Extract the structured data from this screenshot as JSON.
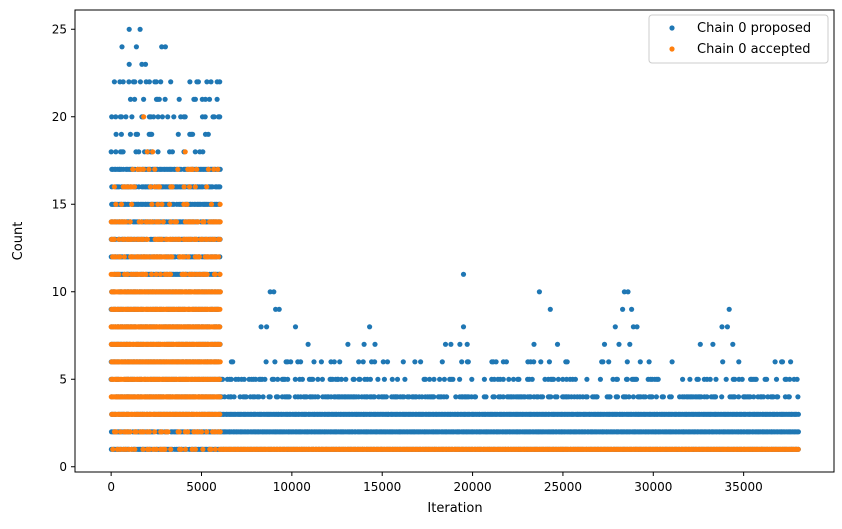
{
  "chart_data": {
    "type": "scatter",
    "title": "",
    "xlabel": "Iteration",
    "ylabel": "Count",
    "xlim": [
      -2000,
      40000
    ],
    "ylim": [
      -0.3,
      26.1
    ],
    "x_ticks": [
      0,
      5000,
      10000,
      15000,
      20000,
      25000,
      30000,
      35000
    ],
    "y_ticks": [
      0,
      5,
      10,
      15,
      20,
      25
    ],
    "grid": false,
    "legend_position": "top-right",
    "series": [
      {
        "name": "Chain 0 proposed",
        "color": "#1f77b4",
        "segments": [
          {
            "x_range": [
              0,
              6000
            ],
            "y_min": 1,
            "y_max": 17,
            "density": 0.9
          },
          {
            "x_range": [
              0,
              6000
            ],
            "y_min": 18,
            "y_max": 22,
            "density": 0.25
          },
          {
            "x_range": [
              6000,
              38000
            ],
            "y_min": 1,
            "y_max": 3,
            "density": 1.0
          },
          {
            "x_range": [
              6000,
              38000
            ],
            "y_min": 4,
            "y_max": 4,
            "density": 0.55
          },
          {
            "x_range": [
              6000,
              38000
            ],
            "y_min": 5,
            "y_max": 5,
            "density": 0.3
          },
          {
            "x_range": [
              6000,
              38000
            ],
            "y_min": 6,
            "y_max": 6,
            "density": 0.12
          }
        ],
        "points": [
          {
            "x": 1000,
            "y": 25
          },
          {
            "x": 1600,
            "y": 25
          },
          {
            "x": 600,
            "y": 24
          },
          {
            "x": 1400,
            "y": 24
          },
          {
            "x": 2800,
            "y": 24
          },
          {
            "x": 3000,
            "y": 24
          },
          {
            "x": 1000,
            "y": 23
          },
          {
            "x": 1700,
            "y": 23
          },
          {
            "x": 1900,
            "y": 23
          },
          {
            "x": 8800,
            "y": 10
          },
          {
            "x": 9000,
            "y": 10
          },
          {
            "x": 9100,
            "y": 9
          },
          {
            "x": 9300,
            "y": 9
          },
          {
            "x": 8600,
            "y": 8
          },
          {
            "x": 8300,
            "y": 8
          },
          {
            "x": 10200,
            "y": 8
          },
          {
            "x": 10900,
            "y": 7
          },
          {
            "x": 13100,
            "y": 7
          },
          {
            "x": 14000,
            "y": 7
          },
          {
            "x": 14300,
            "y": 8
          },
          {
            "x": 14600,
            "y": 7
          },
          {
            "x": 18500,
            "y": 7
          },
          {
            "x": 18800,
            "y": 7
          },
          {
            "x": 19500,
            "y": 11
          },
          {
            "x": 19500,
            "y": 8
          },
          {
            "x": 19300,
            "y": 7
          },
          {
            "x": 19700,
            "y": 7
          },
          {
            "x": 23700,
            "y": 10
          },
          {
            "x": 24300,
            "y": 9
          },
          {
            "x": 23400,
            "y": 7
          },
          {
            "x": 24700,
            "y": 7
          },
          {
            "x": 27900,
            "y": 8
          },
          {
            "x": 28400,
            "y": 10
          },
          {
            "x": 28600,
            "y": 10
          },
          {
            "x": 28300,
            "y": 9
          },
          {
            "x": 28800,
            "y": 9
          },
          {
            "x": 28900,
            "y": 8
          },
          {
            "x": 29100,
            "y": 8
          },
          {
            "x": 27300,
            "y": 7
          },
          {
            "x": 28100,
            "y": 7
          },
          {
            "x": 28700,
            "y": 7
          },
          {
            "x": 33800,
            "y": 8
          },
          {
            "x": 34100,
            "y": 8
          },
          {
            "x": 34200,
            "y": 9
          },
          {
            "x": 33300,
            "y": 7
          },
          {
            "x": 34400,
            "y": 7
          },
          {
            "x": 32600,
            "y": 7
          },
          {
            "x": 37100,
            "y": 6
          },
          {
            "x": 37600,
            "y": 6
          }
        ]
      },
      {
        "name": "Chain 0 accepted",
        "color": "#ff7f0e",
        "segments": [
          {
            "x_range": [
              0,
              6000
            ],
            "y_min": 3,
            "y_max": 10,
            "density": 1.0
          },
          {
            "x_range": [
              0,
              6000
            ],
            "y_min": 11,
            "y_max": 14,
            "density": 0.55
          },
          {
            "x_range": [
              0,
              6000
            ],
            "y_min": 1,
            "y_max": 2,
            "density": 0.35
          },
          {
            "x_range": [
              0,
              6000
            ],
            "y_min": 15,
            "y_max": 17,
            "density": 0.15
          },
          {
            "x_range": [
              6000,
              38000
            ],
            "y_min": 1,
            "y_max": 1,
            "density": 1.0
          }
        ],
        "points": [
          {
            "x": 1800,
            "y": 20
          },
          {
            "x": 2000,
            "y": 18
          },
          {
            "x": 2300,
            "y": 18
          },
          {
            "x": 4100,
            "y": 18
          },
          {
            "x": 4500,
            "y": 17
          },
          {
            "x": 5900,
            "y": 17
          },
          {
            "x": 1200,
            "y": 17
          },
          {
            "x": 2600,
            "y": 16
          },
          {
            "x": 3300,
            "y": 16
          }
        ]
      }
    ]
  }
}
